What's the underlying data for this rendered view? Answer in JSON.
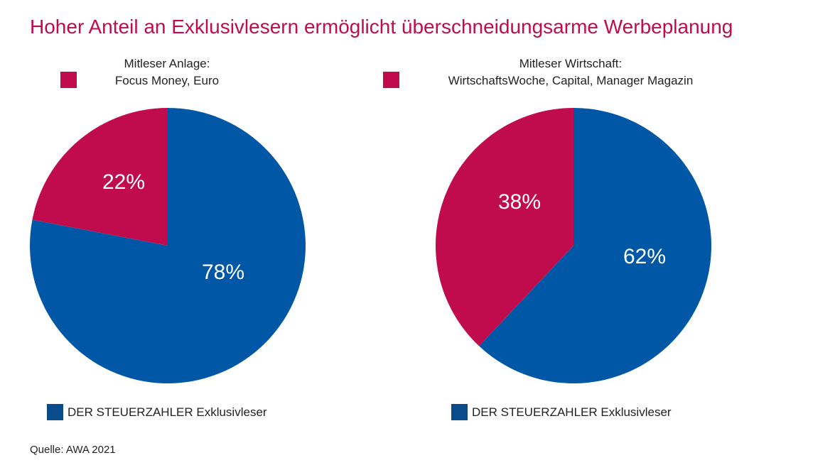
{
  "title": "Hoher Anteil an Exklusivlesern ermöglicht überschneidungsarme Werbeplanung",
  "source": "Quelle: AWA 2021",
  "colors": {
    "exclusive": "#0057a6",
    "coreaders": "#c00c4d",
    "title": "#c00c4d"
  },
  "chart_data": [
    {
      "type": "pie",
      "legend": {
        "coreaders_line1": "Mitleser Anlage:",
        "coreaders_line2": "Focus Money, Euro",
        "exclusive": "DER STEUERZAHLER Exklusivleser"
      },
      "slices": [
        {
          "label": "Mitleser Anlage: Focus Money, Euro",
          "value": 22,
          "display": "22%",
          "color": "#c00c4d"
        },
        {
          "label": "DER STEUERZAHLER Exklusivleser",
          "value": 78,
          "display": "78%",
          "color": "#0057a6"
        }
      ]
    },
    {
      "type": "pie",
      "legend": {
        "coreaders_line1": "Mitleser Wirtschaft:",
        "coreaders_line2": "WirtschaftsWoche, Capital, Manager Magazin",
        "exclusive": "DER STEUERZAHLER Exklusivleser"
      },
      "slices": [
        {
          "label": "Mitleser Wirtschaft: WirtschaftsWoche, Capital, Manager Magazin",
          "value": 38,
          "display": "38%",
          "color": "#c00c4d"
        },
        {
          "label": "DER STEUERZAHLER Exklusivleser",
          "value": 62,
          "display": "62%",
          "color": "#0057a6"
        }
      ]
    }
  ]
}
